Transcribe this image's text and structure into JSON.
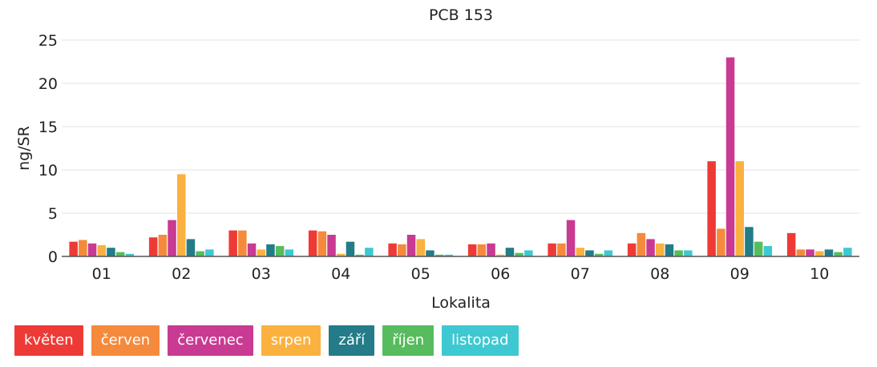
{
  "chart_data": {
    "type": "bar",
    "title": "PCB 153",
    "xlabel": "Lokalita",
    "ylabel": "ng/SR",
    "ylim": [
      0,
      25
    ],
    "yticks": [
      0,
      5,
      10,
      15,
      20,
      25
    ],
    "grid": true,
    "legend_position": "bottom-left",
    "categories": [
      "01",
      "02",
      "03",
      "04",
      "05",
      "06",
      "07",
      "08",
      "09",
      "10"
    ],
    "series": [
      {
        "name": "květen",
        "color": "#ee3a36",
        "values": [
          1.7,
          2.2,
          3.0,
          3.0,
          1.5,
          1.4,
          1.5,
          1.5,
          11.0,
          2.7
        ]
      },
      {
        "name": "červen",
        "color": "#f58a3c",
        "values": [
          1.9,
          2.5,
          3.0,
          2.9,
          1.4,
          1.4,
          1.5,
          2.7,
          3.2,
          0.8
        ]
      },
      {
        "name": "červenec",
        "color": "#c93a92",
        "values": [
          1.5,
          4.2,
          1.5,
          2.5,
          2.5,
          1.5,
          4.2,
          2.0,
          23.0,
          0.8
        ]
      },
      {
        "name": "srpen",
        "color": "#fbb13f",
        "values": [
          1.3,
          9.5,
          0.8,
          0.3,
          2.0,
          0.2,
          1.0,
          1.5,
          11.0,
          0.6
        ]
      },
      {
        "name": "září",
        "color": "#237c87",
        "values": [
          1.0,
          2.0,
          1.4,
          1.7,
          0.7,
          1.0,
          0.7,
          1.4,
          3.4,
          0.8
        ]
      },
      {
        "name": "říjen",
        "color": "#57bc5e",
        "values": [
          0.5,
          0.6,
          1.2,
          0.2,
          0.2,
          0.4,
          0.3,
          0.7,
          1.7,
          0.5
        ]
      },
      {
        "name": "listopad",
        "color": "#3ec8d1",
        "values": [
          0.3,
          0.8,
          0.8,
          1.0,
          0.2,
          0.7,
          0.7,
          0.7,
          1.2,
          1.0
        ]
      }
    ]
  }
}
